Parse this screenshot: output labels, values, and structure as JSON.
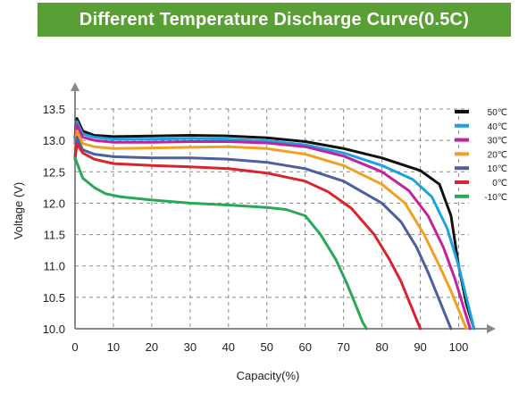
{
  "chart_data": {
    "type": "line",
    "title": "Different Temperature Discharge Curve(0.5C)",
    "xlabel": "Capacity(%)",
    "ylabel": "Voltage (V)",
    "xlim": [
      0,
      105
    ],
    "ylim": [
      10.0,
      13.5
    ],
    "xticks": [
      0,
      10,
      20,
      30,
      40,
      50,
      60,
      70,
      80,
      90,
      100
    ],
    "yticks": [
      10.0,
      10.5,
      11.0,
      11.5,
      12.0,
      12.5,
      13.0,
      13.5
    ],
    "xtick_labels": [
      "0",
      "10",
      "20",
      "30",
      "40",
      "50",
      "60",
      "70",
      "80",
      "90",
      "100"
    ],
    "ytick_labels": [
      "10.0",
      "10.5",
      "11.0",
      "11.5",
      "12.0",
      "12.5",
      "13.0",
      "13.5"
    ],
    "grid": true,
    "legend_position": "top-right",
    "series": [
      {
        "name": "50℃",
        "color": "#111111",
        "x": [
          0,
          0.5,
          2,
          5,
          10,
          20,
          30,
          40,
          50,
          60,
          70,
          80,
          90,
          95,
          98,
          100,
          102,
          104
        ],
        "y": [
          13.05,
          13.35,
          13.15,
          13.08,
          13.06,
          13.07,
          13.08,
          13.07,
          13.04,
          12.98,
          12.87,
          12.72,
          12.52,
          12.3,
          11.8,
          11.0,
          10.4,
          10.0
        ]
      },
      {
        "name": "40℃",
        "color": "#1aa3e0",
        "x": [
          0,
          0.5,
          2,
          5,
          10,
          20,
          30,
          40,
          50,
          60,
          70,
          80,
          88,
          93,
          97,
          100,
          102,
          104
        ],
        "y": [
          13.0,
          13.3,
          13.1,
          13.05,
          13.02,
          13.02,
          13.03,
          13.02,
          12.99,
          12.93,
          12.8,
          12.6,
          12.38,
          12.1,
          11.6,
          11.0,
          10.5,
          10.0
        ]
      },
      {
        "name": "30℃",
        "color": "#c2229b",
        "x": [
          0,
          0.5,
          2,
          5,
          10,
          20,
          30,
          40,
          50,
          60,
          70,
          80,
          87,
          92,
          96,
          99,
          101,
          103
        ],
        "y": [
          12.95,
          13.25,
          13.05,
          13.0,
          12.97,
          12.97,
          12.98,
          12.98,
          12.96,
          12.9,
          12.75,
          12.5,
          12.2,
          11.8,
          11.3,
          10.8,
          10.4,
          10.0
        ]
      },
      {
        "name": "20℃",
        "color": "#f0a023",
        "x": [
          0,
          0.5,
          2,
          5,
          10,
          20,
          30,
          40,
          50,
          60,
          70,
          80,
          86,
          91,
          95,
          98,
          100,
          102
        ],
        "y": [
          12.85,
          13.15,
          12.95,
          12.9,
          12.87,
          12.88,
          12.89,
          12.9,
          12.87,
          12.78,
          12.6,
          12.3,
          12.0,
          11.5,
          11.0,
          10.6,
          10.3,
          10.0
        ]
      },
      {
        "name": "10℃",
        "color": "#4c5f9f",
        "x": [
          0,
          0.5,
          2,
          5,
          10,
          20,
          30,
          40,
          50,
          60,
          70,
          80,
          85,
          89,
          92,
          94,
          96,
          98
        ],
        "y": [
          12.75,
          13.05,
          12.85,
          12.78,
          12.74,
          12.72,
          12.72,
          12.7,
          12.65,
          12.55,
          12.35,
          12.0,
          11.7,
          11.3,
          10.9,
          10.6,
          10.3,
          10.0
        ]
      },
      {
        "name": "0℃",
        "color": "#d9232e",
        "x": [
          0,
          0.5,
          2,
          5,
          10,
          20,
          30,
          40,
          50,
          60,
          66,
          72,
          78,
          82,
          85,
          87,
          89,
          90
        ],
        "y": [
          12.7,
          12.95,
          12.8,
          12.7,
          12.63,
          12.6,
          12.58,
          12.55,
          12.48,
          12.35,
          12.18,
          11.92,
          11.5,
          11.1,
          10.75,
          10.45,
          10.15,
          10.0
        ]
      },
      {
        "name": "-10℃",
        "color": "#2ba75a",
        "x": [
          0,
          2,
          5,
          8,
          12,
          20,
          30,
          40,
          50,
          55,
          60,
          64,
          68,
          71,
          73,
          75,
          76
        ],
        "y": [
          12.72,
          12.4,
          12.25,
          12.15,
          12.1,
          12.05,
          12.0,
          11.97,
          11.93,
          11.9,
          11.8,
          11.5,
          11.1,
          10.7,
          10.4,
          10.1,
          10.0
        ]
      }
    ]
  }
}
